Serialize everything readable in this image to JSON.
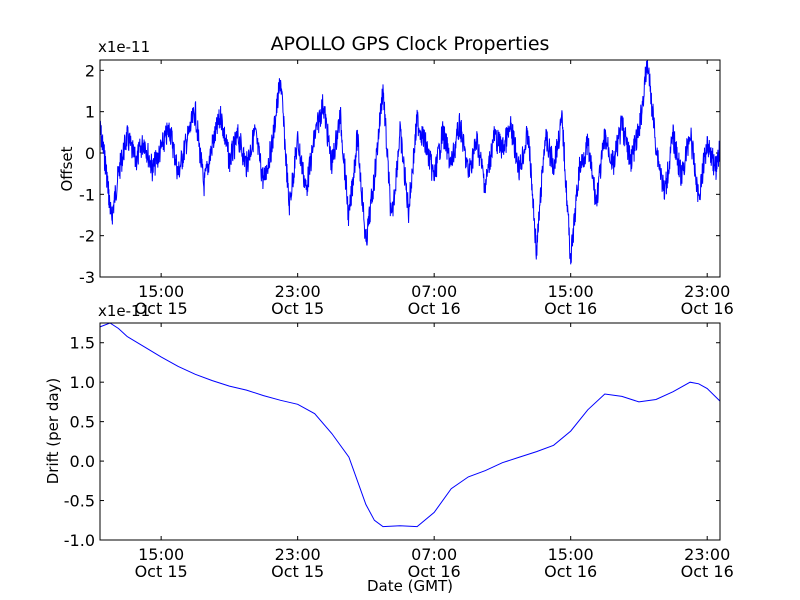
{
  "figure": {
    "title": "APOLLO GPS Clock Properties",
    "xlabel": "Date (GMT)",
    "x_ticks": [
      {
        "time": "2013-10-15T15:00",
        "time_label": "15:00",
        "date_label": "Oct 15"
      },
      {
        "time": "2013-10-15T23:00",
        "time_label": "23:00",
        "date_label": "Oct 15"
      },
      {
        "time": "2013-10-16T07:00",
        "time_label": "07:00",
        "date_label": "Oct 16"
      },
      {
        "time": "2013-10-16T15:00",
        "time_label": "15:00",
        "date_label": "Oct 16"
      },
      {
        "time": "2013-10-16T23:00",
        "time_label": "23:00",
        "date_label": "Oct 16"
      }
    ],
    "xlim": [
      "2013-10-15T11:25",
      "2013-10-16T23:45"
    ]
  },
  "chart_data": [
    {
      "type": "line",
      "title": "APOLLO GPS Clock Properties",
      "xlabel": "",
      "ylabel": "Offset",
      "scale_label": "x1e-11",
      "ylim": [
        -3,
        2.25
      ],
      "y_ticks": [
        "2",
        "1",
        "0",
        "-1",
        "-2",
        "-3"
      ],
      "y_tick_values": [
        2,
        1,
        0,
        -1,
        -2,
        -3
      ],
      "color": "#0000ff",
      "x": [
        "2013-10-15T11:25",
        "2013-10-15T11:45",
        "2013-10-15T12:05",
        "2013-10-15T12:30",
        "2013-10-15T13:00",
        "2013-10-15T13:30",
        "2013-10-15T14:00",
        "2013-10-15T14:30",
        "2013-10-15T15:00",
        "2013-10-15T15:30",
        "2013-10-15T16:00",
        "2013-10-15T16:30",
        "2013-10-15T17:00",
        "2013-10-15T17:30",
        "2013-10-15T18:00",
        "2013-10-15T18:30",
        "2013-10-15T19:00",
        "2013-10-15T19:30",
        "2013-10-15T20:00",
        "2013-10-15T20:30",
        "2013-10-15T21:00",
        "2013-10-15T21:30",
        "2013-10-15T22:00",
        "2013-10-15T22:30",
        "2013-10-15T23:00",
        "2013-10-15T23:30",
        "2013-10-16T00:00",
        "2013-10-16T00:30",
        "2013-10-16T01:00",
        "2013-10-16T01:30",
        "2013-10-16T02:00",
        "2013-10-16T02:30",
        "2013-10-16T03:00",
        "2013-10-16T03:30",
        "2013-10-16T04:00",
        "2013-10-16T04:30",
        "2013-10-16T05:00",
        "2013-10-16T05:30",
        "2013-10-16T06:00",
        "2013-10-16T06:30",
        "2013-10-16T07:00",
        "2013-10-16T07:30",
        "2013-10-16T08:00",
        "2013-10-16T08:30",
        "2013-10-16T09:00",
        "2013-10-16T09:30",
        "2013-10-16T10:00",
        "2013-10-16T10:30",
        "2013-10-16T11:00",
        "2013-10-16T11:30",
        "2013-10-16T12:00",
        "2013-10-16T12:30",
        "2013-10-16T13:00",
        "2013-10-16T13:30",
        "2013-10-16T14:00",
        "2013-10-16T14:30",
        "2013-10-16T15:00",
        "2013-10-16T15:30",
        "2013-10-16T16:00",
        "2013-10-16T16:30",
        "2013-10-16T17:00",
        "2013-10-16T17:30",
        "2013-10-16T18:00",
        "2013-10-16T18:30",
        "2013-10-16T19:00",
        "2013-10-16T19:30",
        "2013-10-16T20:00",
        "2013-10-16T20:30",
        "2013-10-16T21:00",
        "2013-10-16T21:30",
        "2013-10-16T22:00",
        "2013-10-16T22:30",
        "2013-10-16T23:00",
        "2013-10-16T23:30",
        "2013-10-16T23:45"
      ],
      "y": [
        0.6,
        -0.3,
        -1.6,
        -0.5,
        0.4,
        -0.2,
        0.3,
        -0.4,
        0.1,
        0.6,
        -0.5,
        0.3,
        1.0,
        -0.8,
        0.2,
        0.9,
        -0.2,
        0.4,
        -0.3,
        0.5,
        -0.7,
        0.2,
        1.8,
        -1.3,
        0.3,
        -0.9,
        0.4,
        1.2,
        -0.3,
        0.9,
        -1.6,
        0.4,
        -2.2,
        -0.6,
        1.6,
        -1.7,
        0.5,
        -1.4,
        0.8,
        0.2,
        -0.6,
        0.5,
        -0.3,
        0.7,
        -0.5,
        0.3,
        -0.8,
        0.4,
        0.1,
        0.6,
        -0.4,
        0.5,
        -2.4,
        0.4,
        -0.3,
        0.8,
        -2.6,
        -0.4,
        0.2,
        -1.2,
        0.4,
        -0.3,
        0.7,
        -0.2,
        0.5,
        2.2,
        0.2,
        -1.0,
        0.4,
        -0.6,
        0.5,
        -1.1,
        0.3,
        -0.4,
        0.1
      ]
    },
    {
      "type": "line",
      "title": "",
      "xlabel": "Date (GMT)",
      "ylabel": "Drift (per day)",
      "scale_label": "x1e-11",
      "ylim": [
        -1.0,
        1.75
      ],
      "y_ticks": [
        "1.5",
        "1.0",
        "0.5",
        "0.0",
        "-0.5",
        "-1.0"
      ],
      "y_tick_values": [
        1.5,
        1.0,
        0.5,
        0.0,
        -0.5,
        -1.0
      ],
      "color": "#0000ff",
      "x": [
        "2013-10-15T11:25",
        "2013-10-15T12:00",
        "2013-10-15T12:30",
        "2013-10-15T13:00",
        "2013-10-15T14:00",
        "2013-10-15T15:00",
        "2013-10-15T16:00",
        "2013-10-15T17:00",
        "2013-10-15T18:00",
        "2013-10-15T19:00",
        "2013-10-15T20:00",
        "2013-10-15T21:00",
        "2013-10-15T22:00",
        "2013-10-15T23:00",
        "2013-10-16T00:00",
        "2013-10-16T01:00",
        "2013-10-16T02:00",
        "2013-10-16T03:00",
        "2013-10-16T03:30",
        "2013-10-16T04:00",
        "2013-10-16T05:00",
        "2013-10-16T06:00",
        "2013-10-16T07:00",
        "2013-10-16T08:00",
        "2013-10-16T09:00",
        "2013-10-16T10:00",
        "2013-10-16T11:00",
        "2013-10-16T12:00",
        "2013-10-16T13:00",
        "2013-10-16T14:00",
        "2013-10-16T15:00",
        "2013-10-16T16:00",
        "2013-10-16T17:00",
        "2013-10-16T18:00",
        "2013-10-16T19:00",
        "2013-10-16T20:00",
        "2013-10-16T21:00",
        "2013-10-16T22:00",
        "2013-10-16T22:30",
        "2013-10-16T23:00",
        "2013-10-16T23:45"
      ],
      "y": [
        1.7,
        1.75,
        1.68,
        1.58,
        1.45,
        1.32,
        1.2,
        1.1,
        1.02,
        0.95,
        0.9,
        0.83,
        0.77,
        0.72,
        0.6,
        0.35,
        0.05,
        -0.55,
        -0.75,
        -0.83,
        -0.82,
        -0.83,
        -0.65,
        -0.35,
        -0.2,
        -0.12,
        -0.02,
        0.05,
        0.12,
        0.2,
        0.38,
        0.65,
        0.85,
        0.82,
        0.75,
        0.78,
        0.88,
        1.0,
        0.98,
        0.92,
        0.76
      ]
    }
  ]
}
